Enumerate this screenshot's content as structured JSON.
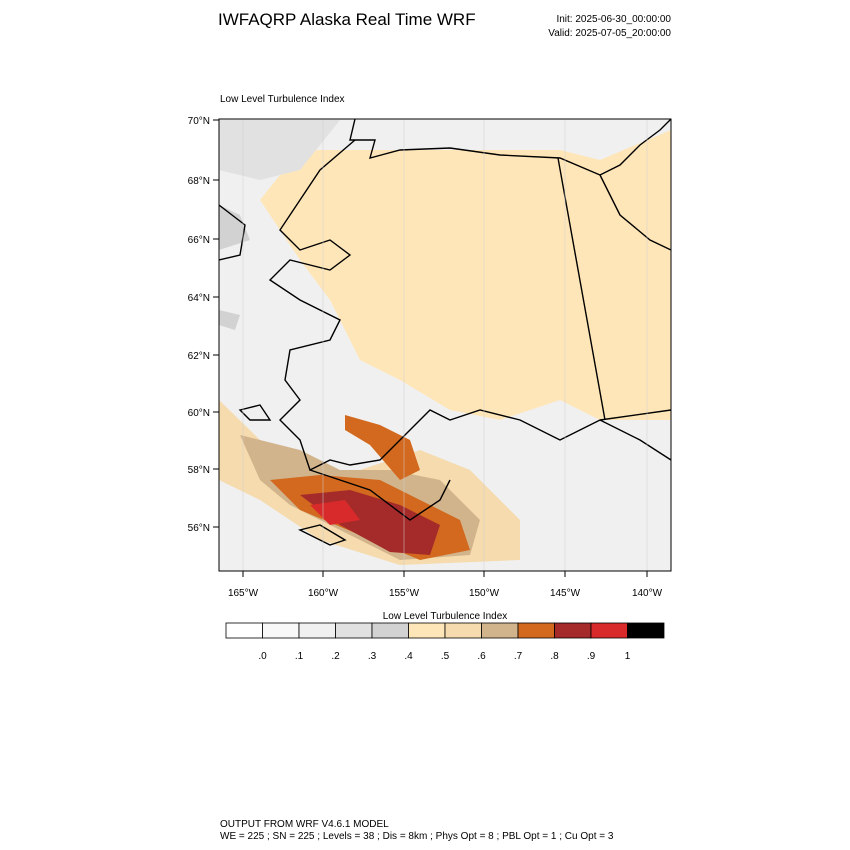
{
  "header": {
    "title": "IWFAQRP Alaska Real Time WRF",
    "init": "Init: 2025-06-30_00:00:00",
    "valid": "Valid: 2025-07-05_20:00:00"
  },
  "map": {
    "subtitle": "Low Level Turbulence Index",
    "lat_labels": [
      "70°N",
      "68°N",
      "66°N",
      "64°N",
      "62°N",
      "60°N",
      "58°N",
      "56°N"
    ],
    "lon_labels": [
      "165°W",
      "160°W",
      "155°W",
      "150°W",
      "145°W",
      "140°W"
    ]
  },
  "legend": {
    "title": "Low Level Turbulence Index",
    "labels": [
      ".0",
      ".1",
      ".2",
      ".3",
      ".4",
      ".5",
      ".6",
      ".7",
      ".8",
      ".9",
      "1"
    ],
    "colors": [
      "#ffffff",
      "#f8f8f8",
      "#f0f0f0",
      "#e1e1e1",
      "#d2d2d2",
      "#ffe6b8",
      "#f5dbae",
      "#d2b48c",
      "#d2691e",
      "#a52a2a",
      "#d82a2a",
      "#000000"
    ]
  },
  "footer": {
    "line1": "OUTPUT FROM WRF V4.6.1 MODEL",
    "line2": "WE = 225 ; SN = 225 ; Levels = 38 ; Dis = 8km ; Phys Opt = 8 ; PBL Opt = 1 ; Cu Opt = 3"
  }
}
